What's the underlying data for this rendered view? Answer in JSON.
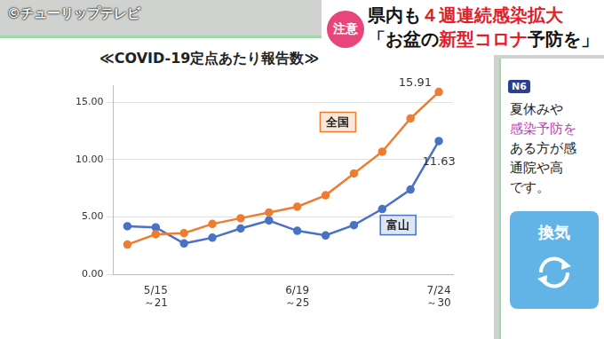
{
  "chart_data": {
    "type": "line",
    "title": "≪COVID-19定点あたり報告数≫",
    "categories": [
      null,
      "5/15\n～21",
      null,
      null,
      null,
      null,
      "6/19\n～25",
      null,
      null,
      null,
      null,
      "7/24\n～30"
    ],
    "series": [
      {
        "name": "全国",
        "color": "#ed7d31",
        "marker": "circle",
        "values": [
          2.6,
          3.5,
          3.6,
          4.4,
          4.9,
          5.4,
          5.9,
          6.9,
          8.8,
          10.7,
          13.6,
          15.91
        ],
        "value_labels": [
          null,
          null,
          null,
          null,
          null,
          null,
          null,
          null,
          null,
          null,
          null,
          "15.91"
        ]
      },
      {
        "name": "富山",
        "color": "#4a72c4",
        "marker": "circle",
        "values": [
          4.2,
          4.1,
          2.7,
          3.2,
          4.0,
          4.7,
          3.8,
          3.4,
          4.3,
          5.7,
          7.4,
          11.63
        ],
        "value_labels": [
          null,
          null,
          null,
          null,
          null,
          null,
          null,
          null,
          null,
          null,
          null,
          "11.63"
        ]
      }
    ],
    "ylim": [
      0,
      16.5
    ],
    "yticks": [
      {
        "value": 0,
        "label": "0.00"
      },
      {
        "value": 5,
        "label": "5.00"
      },
      {
        "value": 10,
        "label": "10.00"
      },
      {
        "value": 15,
        "label": "15.00"
      }
    ],
    "grid": true
  },
  "overlay": {
    "copyright": "©チューリップテレビ",
    "badge": "注意",
    "headline": [
      "県内も",
      "４週連続感染拡大"
    ],
    "subhead": [
      "「お盆の",
      "新型コロナ",
      "予防を」"
    ],
    "logo": "N6",
    "side_text": [
      "夏休みや",
      "感染予防を",
      "ある方が感",
      "通院や高",
      "です。"
    ],
    "button": "換気"
  }
}
